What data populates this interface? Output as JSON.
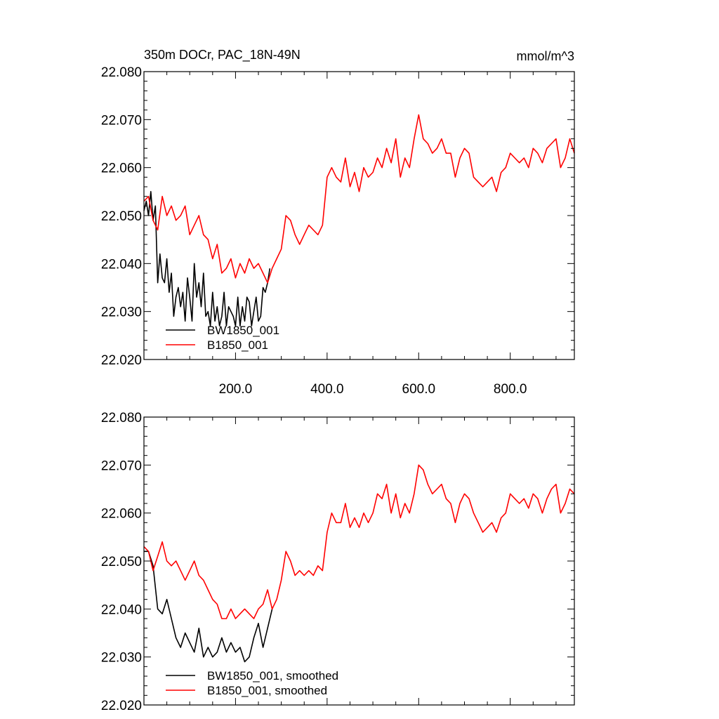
{
  "chart_data": [
    {
      "type": "line",
      "title_left": "350m DOCr, PAC_18N-49N",
      "title_right": "mmol/m^3",
      "xlim": [
        0,
        940
      ],
      "ylim": [
        22.02,
        22.08
      ],
      "yticks": [
        "22.020",
        "22.030",
        "22.040",
        "22.050",
        "22.060",
        "22.070",
        "22.080"
      ],
      "yticks_values": [
        22.02,
        22.03,
        22.04,
        22.05,
        22.06,
        22.07,
        22.08
      ],
      "xticks": [
        "200.0",
        "400.0",
        "600.0",
        "800.0"
      ],
      "xticks_values": [
        200,
        400,
        600,
        800
      ],
      "grid": false,
      "legend_position": "bottom-left",
      "series": [
        {
          "name": "BW1850_001",
          "color": "#000000",
          "x": [
            0,
            5,
            10,
            15,
            20,
            25,
            30,
            35,
            40,
            45,
            50,
            55,
            60,
            65,
            70,
            75,
            80,
            85,
            90,
            95,
            100,
            105,
            110,
            115,
            120,
            125,
            130,
            135,
            140,
            145,
            150,
            155,
            160,
            165,
            170,
            175,
            180,
            185,
            190,
            195,
            200,
            205,
            210,
            215,
            220,
            225,
            230,
            235,
            240,
            245,
            250,
            255,
            260,
            265,
            270,
            275
          ],
          "y": [
            22.051,
            22.053,
            22.05,
            22.055,
            22.049,
            22.052,
            22.036,
            22.042,
            22.037,
            22.036,
            22.041,
            22.034,
            22.038,
            22.029,
            22.033,
            22.035,
            22.031,
            22.034,
            22.028,
            22.037,
            22.033,
            22.028,
            22.04,
            22.033,
            22.036,
            22.031,
            22.038,
            22.029,
            22.03,
            22.027,
            22.034,
            22.028,
            22.031,
            22.027,
            22.029,
            22.034,
            22.027,
            22.031,
            22.03,
            22.029,
            22.027,
            22.033,
            22.027,
            22.031,
            22.028,
            22.033,
            22.032,
            22.027,
            22.03,
            22.033,
            22.028,
            22.029,
            22.035,
            22.034,
            22.036,
            22.039
          ]
        },
        {
          "name": "B1850_001",
          "color": "#ff0000",
          "x": [
            0,
            10,
            20,
            30,
            40,
            50,
            60,
            70,
            80,
            90,
            100,
            110,
            120,
            130,
            140,
            150,
            160,
            170,
            180,
            190,
            200,
            210,
            220,
            230,
            240,
            250,
            260,
            270,
            280,
            290,
            300,
            310,
            320,
            330,
            340,
            350,
            360,
            370,
            380,
            390,
            400,
            410,
            420,
            430,
            440,
            450,
            460,
            470,
            480,
            490,
            500,
            510,
            520,
            530,
            540,
            550,
            560,
            570,
            580,
            590,
            600,
            610,
            620,
            630,
            640,
            650,
            660,
            670,
            680,
            690,
            700,
            710,
            720,
            730,
            740,
            750,
            760,
            770,
            780,
            790,
            800,
            810,
            820,
            830,
            840,
            850,
            860,
            870,
            880,
            890,
            900,
            910,
            920,
            930,
            940
          ],
          "y": [
            22.053,
            22.054,
            22.049,
            22.047,
            22.054,
            22.05,
            22.052,
            22.049,
            22.05,
            22.052,
            22.046,
            22.048,
            22.05,
            22.046,
            22.045,
            22.041,
            22.044,
            22.038,
            22.039,
            22.041,
            22.037,
            22.04,
            22.038,
            22.041,
            22.039,
            22.04,
            22.038,
            22.036,
            22.039,
            22.041,
            22.043,
            22.05,
            22.049,
            22.046,
            22.044,
            22.046,
            22.048,
            22.047,
            22.046,
            22.048,
            22.058,
            22.06,
            22.058,
            22.057,
            22.062,
            22.056,
            22.059,
            22.055,
            22.06,
            22.058,
            22.059,
            22.062,
            22.06,
            22.064,
            22.061,
            22.066,
            22.058,
            22.062,
            22.06,
            22.066,
            22.071,
            22.066,
            22.065,
            22.063,
            22.064,
            22.066,
            22.063,
            22.063,
            22.058,
            22.062,
            22.064,
            22.063,
            22.058,
            22.057,
            22.056,
            22.057,
            22.058,
            22.055,
            22.059,
            22.06,
            22.063,
            22.062,
            22.061,
            22.062,
            22.06,
            22.064,
            22.063,
            22.061,
            22.064,
            22.065,
            22.066,
            22.06,
            22.062,
            22.066,
            22.063
          ]
        }
      ]
    },
    {
      "type": "line",
      "xlim": [
        0,
        940
      ],
      "ylim": [
        22.02,
        22.08
      ],
      "yticks": [
        "22.020",
        "22.030",
        "22.040",
        "22.050",
        "22.060",
        "22.070",
        "22.080"
      ],
      "yticks_values": [
        22.02,
        22.03,
        22.04,
        22.05,
        22.06,
        22.07,
        22.08
      ],
      "grid": false,
      "legend_position": "bottom-left",
      "series": [
        {
          "name": "BW1850_001, smoothed",
          "color": "#000000",
          "x": [
            0,
            10,
            20,
            30,
            40,
            50,
            60,
            70,
            80,
            90,
            100,
            110,
            120,
            130,
            140,
            150,
            160,
            170,
            180,
            190,
            200,
            210,
            220,
            230,
            240,
            250,
            260,
            270,
            280
          ],
          "y": [
            22.052,
            22.052,
            22.049,
            22.04,
            22.039,
            22.042,
            22.038,
            22.034,
            22.032,
            22.035,
            22.033,
            22.031,
            22.036,
            22.03,
            22.032,
            22.03,
            22.031,
            22.034,
            22.031,
            22.033,
            22.031,
            22.032,
            22.029,
            22.03,
            22.034,
            22.037,
            22.032,
            22.036,
            22.04
          ]
        },
        {
          "name": "B1850_001, smoothed",
          "color": "#ff0000",
          "x": [
            0,
            10,
            20,
            30,
            40,
            50,
            60,
            70,
            80,
            90,
            100,
            110,
            120,
            130,
            140,
            150,
            160,
            170,
            180,
            190,
            200,
            210,
            220,
            230,
            240,
            250,
            260,
            270,
            280,
            290,
            300,
            310,
            320,
            330,
            340,
            350,
            360,
            370,
            380,
            390,
            400,
            410,
            420,
            430,
            440,
            450,
            460,
            470,
            480,
            490,
            500,
            510,
            520,
            530,
            540,
            550,
            560,
            570,
            580,
            590,
            600,
            610,
            620,
            630,
            640,
            650,
            660,
            670,
            680,
            690,
            700,
            710,
            720,
            730,
            740,
            750,
            760,
            770,
            780,
            790,
            800,
            810,
            820,
            830,
            840,
            850,
            860,
            870,
            880,
            890,
            900,
            910,
            920,
            930,
            940
          ],
          "y": [
            22.053,
            22.052,
            22.048,
            22.051,
            22.054,
            22.05,
            22.049,
            22.05,
            22.048,
            22.046,
            22.048,
            22.05,
            22.047,
            22.046,
            22.044,
            22.042,
            22.041,
            22.038,
            22.038,
            22.04,
            22.038,
            22.039,
            22.04,
            22.039,
            22.038,
            22.04,
            22.041,
            22.044,
            22.04,
            22.042,
            22.046,
            22.052,
            22.05,
            22.047,
            22.048,
            22.047,
            22.048,
            22.047,
            22.049,
            22.048,
            22.056,
            22.06,
            22.058,
            22.058,
            22.062,
            22.057,
            22.059,
            22.057,
            22.06,
            22.058,
            22.06,
            22.064,
            22.063,
            22.066,
            22.06,
            22.064,
            22.059,
            22.062,
            22.06,
            22.064,
            22.07,
            22.069,
            22.066,
            22.064,
            22.065,
            22.066,
            22.063,
            22.062,
            22.058,
            22.062,
            22.064,
            22.063,
            22.06,
            22.058,
            22.056,
            22.057,
            22.058,
            22.056,
            22.059,
            22.06,
            22.064,
            22.063,
            22.062,
            22.063,
            22.061,
            22.064,
            22.063,
            22.06,
            22.063,
            22.065,
            22.066,
            22.06,
            22.062,
            22.065,
            22.064
          ]
        }
      ]
    }
  ]
}
